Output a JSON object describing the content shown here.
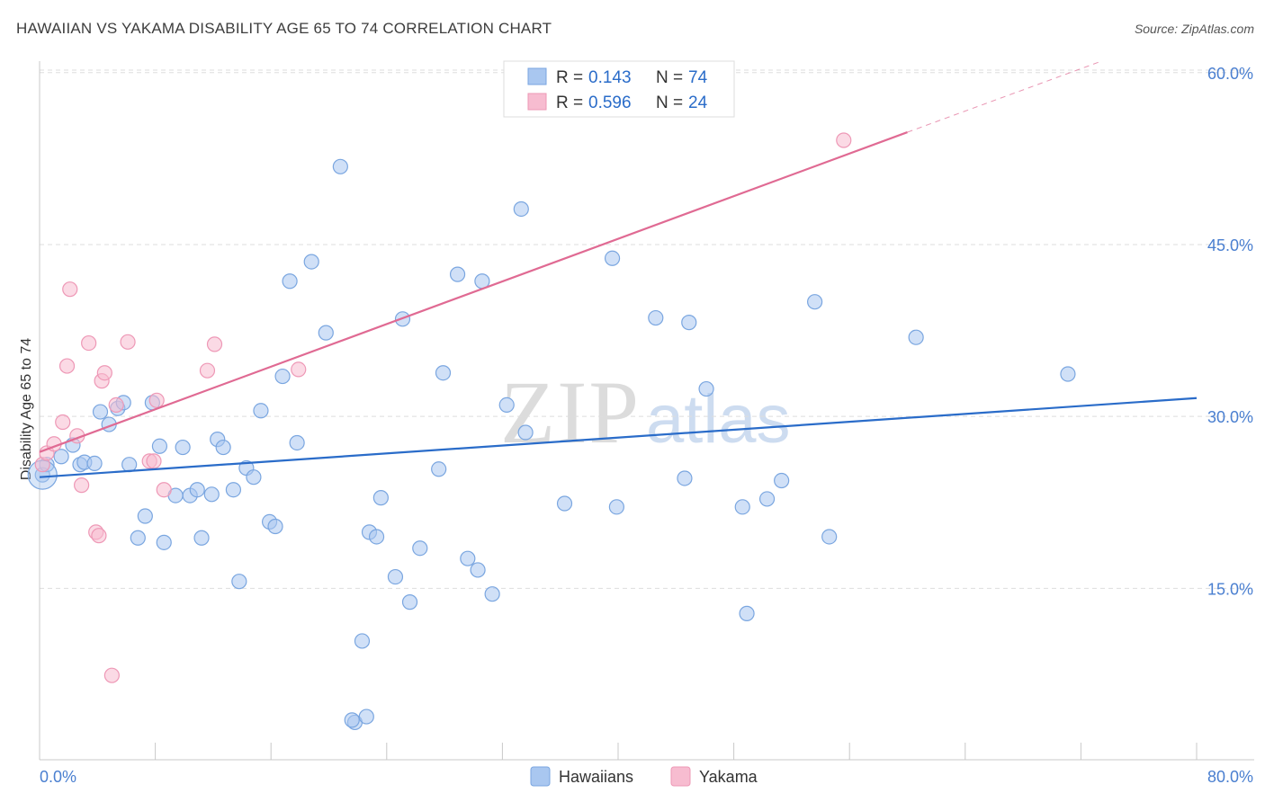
{
  "title": "HAWAIIAN VS YAKAMA DISABILITY AGE 65 TO 74 CORRELATION CHART",
  "source": "Source: ZipAtlas.com",
  "watermark": {
    "zip": "ZIP",
    "atlas": "atlas"
  },
  "colors": {
    "blue_fill": "#a9c7f0",
    "blue_stroke": "#7aa6e0",
    "blue_line": "#2a6cc9",
    "pink_fill": "#f7bcd0",
    "pink_stroke": "#ee98b6",
    "pink_line": "#e06a93",
    "tick_text": "#4a7fd0",
    "grid": "#dddddd"
  },
  "legend_box": {
    "rows": [
      {
        "r_label": "R = ",
        "r_value": "0.143",
        "n_label": "N = ",
        "n_value": "74",
        "series": "Hawaiians"
      },
      {
        "r_label": "R = ",
        "r_value": "0.596",
        "n_label": "N = ",
        "n_value": "24",
        "series": "Yakama"
      }
    ]
  },
  "bottom_legend": [
    "Hawaiians",
    "Yakama"
  ],
  "chart_data": {
    "type": "scatter",
    "title": "HAWAIIAN VS YAKAMA DISABILITY AGE 65 TO 74 CORRELATION CHART",
    "xlabel": "",
    "ylabel": "Disability Age 65 to 74",
    "xlim": [
      0,
      80
    ],
    "ylim": [
      0,
      62
    ],
    "x_tick_labels": [
      {
        "value": 0,
        "label": "0.0%"
      },
      {
        "value": 80,
        "label": "80.0%"
      }
    ],
    "y_tick_labels": [
      {
        "value": 15,
        "label": "15.0%"
      },
      {
        "value": 30,
        "label": "30.0%"
      },
      {
        "value": 45,
        "label": "45.0%"
      },
      {
        "value": 60,
        "label": "60.0%"
      }
    ],
    "x_minor_ticks": [
      0,
      8,
      16,
      24,
      32,
      40,
      48,
      56,
      64,
      72,
      80
    ],
    "series": [
      {
        "name": "Hawaiians",
        "r": 0.143,
        "n": 74,
        "trend": {
          "x": [
            0,
            80
          ],
          "y": [
            24.7,
            31.6
          ]
        },
        "points": [
          [
            0.2,
            24.9
          ],
          [
            0.5,
            25.8
          ],
          [
            1.5,
            26.5
          ],
          [
            2.3,
            27.5
          ],
          [
            2.8,
            25.8
          ],
          [
            3.1,
            26.0
          ],
          [
            3.8,
            25.9
          ],
          [
            4.2,
            30.4
          ],
          [
            4.8,
            29.3
          ],
          [
            5.4,
            30.7
          ],
          [
            5.8,
            31.2
          ],
          [
            6.2,
            25.8
          ],
          [
            6.8,
            19.4
          ],
          [
            7.3,
            21.3
          ],
          [
            7.8,
            31.2
          ],
          [
            8.3,
            27.4
          ],
          [
            8.6,
            19.0
          ],
          [
            9.4,
            23.1
          ],
          [
            9.9,
            27.3
          ],
          [
            10.4,
            23.1
          ],
          [
            10.9,
            23.6
          ],
          [
            11.2,
            19.4
          ],
          [
            11.9,
            23.2
          ],
          [
            12.3,
            28.0
          ],
          [
            12.7,
            27.3
          ],
          [
            13.4,
            23.6
          ],
          [
            13.8,
            15.6
          ],
          [
            14.3,
            25.5
          ],
          [
            14.8,
            24.7
          ],
          [
            15.3,
            30.5
          ],
          [
            15.9,
            20.8
          ],
          [
            16.3,
            20.4
          ],
          [
            16.8,
            33.5
          ],
          [
            17.3,
            41.8
          ],
          [
            17.8,
            27.7
          ],
          [
            18.8,
            43.5
          ],
          [
            19.8,
            37.3
          ],
          [
            20.8,
            51.8
          ],
          [
            21.8,
            3.3
          ],
          [
            22.3,
            10.4
          ],
          [
            22.8,
            19.9
          ],
          [
            23.3,
            19.5
          ],
          [
            23.6,
            22.9
          ],
          [
            24.6,
            16.0
          ],
          [
            25.1,
            38.5
          ],
          [
            25.6,
            13.8
          ],
          [
            26.3,
            18.5
          ],
          [
            27.6,
            25.4
          ],
          [
            27.9,
            33.8
          ],
          [
            28.9,
            42.4
          ],
          [
            29.6,
            17.6
          ],
          [
            30.3,
            16.6
          ],
          [
            30.6,
            41.8
          ],
          [
            31.3,
            14.5
          ],
          [
            32.3,
            31.0
          ],
          [
            33.3,
            48.1
          ],
          [
            33.6,
            28.6
          ],
          [
            36.3,
            22.4
          ],
          [
            39.6,
            43.8
          ],
          [
            39.9,
            22.1
          ],
          [
            42.6,
            38.6
          ],
          [
            44.6,
            24.6
          ],
          [
            44.9,
            38.2
          ],
          [
            46.1,
            32.4
          ],
          [
            48.6,
            22.1
          ],
          [
            48.9,
            12.8
          ],
          [
            50.3,
            22.8
          ],
          [
            51.3,
            24.4
          ],
          [
            53.6,
            40.0
          ],
          [
            54.6,
            19.5
          ],
          [
            60.6,
            36.9
          ],
          [
            71.1,
            33.7
          ],
          [
            21.6,
            3.5
          ],
          [
            22.6,
            3.8
          ]
        ]
      },
      {
        "name": "Yakama",
        "r": 0.596,
        "n": 24,
        "trend": {
          "x": [
            0,
            60
          ],
          "y": [
            26.9,
            54.8
          ]
        },
        "trend_dashed": {
          "x": [
            60,
            73.2
          ],
          "y": [
            54.8,
            60.9
          ]
        },
        "points": [
          [
            0.2,
            25.8
          ],
          [
            0.5,
            26.8
          ],
          [
            1.0,
            27.6
          ],
          [
            1.6,
            29.5
          ],
          [
            1.9,
            34.4
          ],
          [
            2.1,
            41.1
          ],
          [
            2.6,
            28.3
          ],
          [
            2.9,
            24.0
          ],
          [
            3.4,
            36.4
          ],
          [
            3.9,
            19.9
          ],
          [
            4.1,
            19.6
          ],
          [
            4.3,
            33.1
          ],
          [
            4.5,
            33.8
          ],
          [
            5.0,
            7.4
          ],
          [
            5.3,
            31.0
          ],
          [
            6.1,
            36.5
          ],
          [
            7.6,
            26.1
          ],
          [
            7.9,
            26.1
          ],
          [
            8.1,
            31.4
          ],
          [
            8.6,
            23.6
          ],
          [
            11.6,
            34.0
          ],
          [
            12.1,
            36.3
          ],
          [
            17.9,
            34.1
          ],
          [
            55.6,
            54.1
          ]
        ]
      }
    ]
  }
}
